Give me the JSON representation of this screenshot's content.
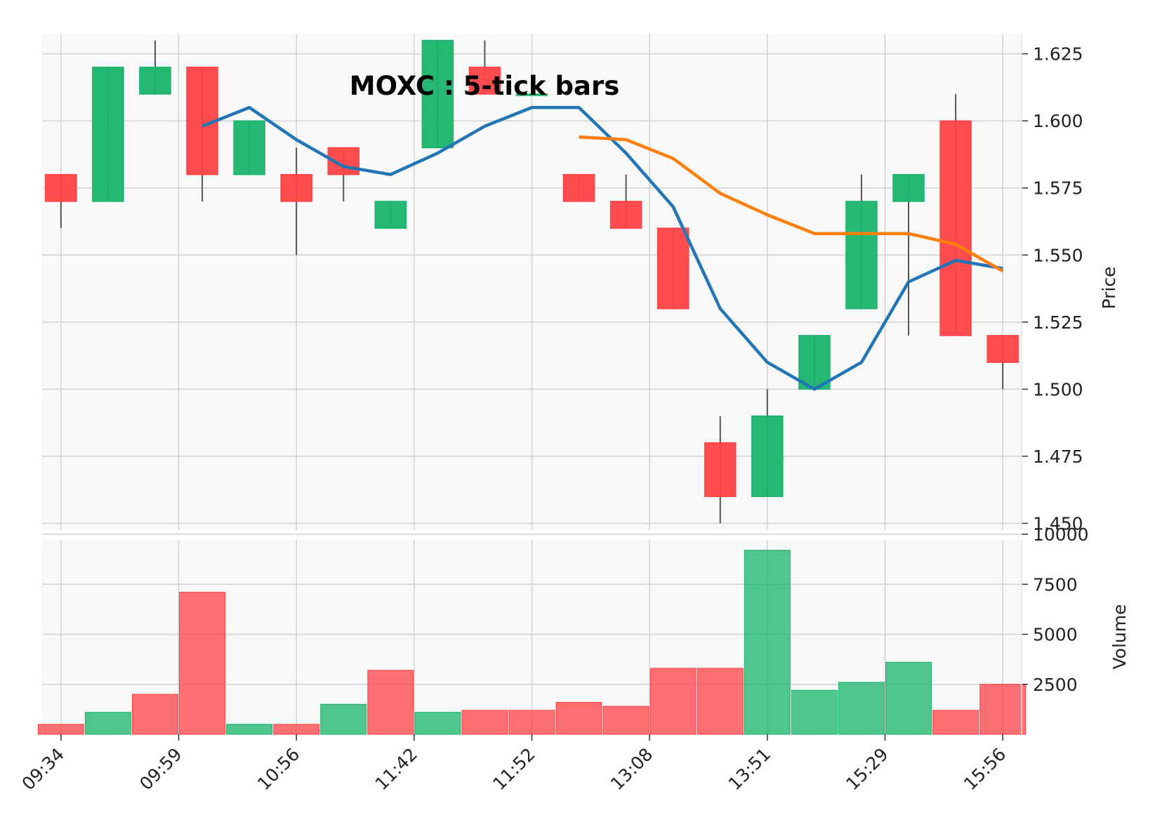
{
  "chart_data": {
    "type": "candlestick",
    "title": "MOXC : 5-tick bars",
    "price_axis_label": "Price",
    "volume_axis_label": "Volume",
    "x_tick_labels": [
      "09:34",
      "09:59",
      "10:56",
      "11:42",
      "11:52",
      "13:08",
      "13:51",
      "15:29",
      "15:56"
    ],
    "x_tick_indices": [
      0,
      5,
      10,
      15,
      20,
      25,
      30,
      35,
      40
    ],
    "price_ticks": [
      "1.450",
      "1.475",
      "1.500",
      "1.525",
      "1.550",
      "1.575",
      "1.600",
      "1.625"
    ],
    "price_tick_values": [
      1.45,
      1.475,
      1.5,
      1.525,
      1.55,
      1.575,
      1.6,
      1.625
    ],
    "volume_ticks": [
      "2500",
      "5000",
      "7500",
      "10000"
    ],
    "volume_tick_values": [
      2500,
      5000,
      7500,
      10000
    ],
    "price_ylim": [
      1.4475,
      1.6325
    ],
    "volume_ylim": [
      0,
      10000
    ],
    "x_range": [
      -0.8,
      40.8
    ],
    "colors": {
      "up": "#18b46b",
      "down": "#ff4245",
      "wick": "#555555",
      "background": "#f8f8f8",
      "grid": "#d2d2d2",
      "ma_short": "#2276b6",
      "ma_long": "#ff7f0e"
    },
    "candles": [
      {
        "i": 0,
        "open": 1.58,
        "high": 1.58,
        "low": 1.56,
        "close": 1.57
      },
      {
        "i": 2,
        "open": 1.57,
        "high": 1.62,
        "low": 1.57,
        "close": 1.62
      },
      {
        "i": 4,
        "open": 1.61,
        "high": 1.63,
        "low": 1.61,
        "close": 1.62
      },
      {
        "i": 6,
        "open": 1.62,
        "high": 1.62,
        "low": 1.57,
        "close": 1.58
      },
      {
        "i": 8,
        "open": 1.58,
        "high": 1.6,
        "low": 1.58,
        "close": 1.6
      },
      {
        "i": 10,
        "open": 1.58,
        "high": 1.59,
        "low": 1.55,
        "close": 1.57
      },
      {
        "i": 12,
        "open": 1.59,
        "high": 1.59,
        "low": 1.57,
        "close": 1.58
      },
      {
        "i": 14,
        "open": 1.56,
        "high": 1.57,
        "low": 1.56,
        "close": 1.57
      },
      {
        "i": 16,
        "open": 1.59,
        "high": 1.63,
        "low": 1.59,
        "close": 1.63
      },
      {
        "i": 18,
        "open": 1.62,
        "high": 1.63,
        "low": 1.61,
        "close": 1.61
      },
      {
        "i": 20,
        "open": 1.61,
        "high": 1.61,
        "low": 1.61,
        "close": 1.61
      },
      {
        "i": 22,
        "open": 1.58,
        "high": 1.58,
        "low": 1.57,
        "close": 1.57
      },
      {
        "i": 24,
        "open": 1.57,
        "high": 1.58,
        "low": 1.56,
        "close": 1.56
      },
      {
        "i": 26,
        "open": 1.56,
        "high": 1.56,
        "low": 1.53,
        "close": 1.53
      },
      {
        "i": 28,
        "open": 1.48,
        "high": 1.49,
        "low": 1.45,
        "close": 1.46
      },
      {
        "i": 30,
        "open": 1.46,
        "high": 1.5,
        "low": 1.46,
        "close": 1.49
      },
      {
        "i": 32,
        "open": 1.5,
        "high": 1.52,
        "low": 1.5,
        "close": 1.52
      },
      {
        "i": 34,
        "open": 1.53,
        "high": 1.58,
        "low": 1.53,
        "close": 1.57
      },
      {
        "i": 36,
        "open": 1.57,
        "high": 1.58,
        "low": 1.52,
        "close": 1.58
      },
      {
        "i": 38,
        "open": 1.6,
        "high": 1.61,
        "low": 1.52,
        "close": 1.52
      },
      {
        "i": 40,
        "open": 1.52,
        "high": 1.52,
        "low": 1.5,
        "close": 1.51
      }
    ],
    "volume_bars": [
      {
        "i": 0,
        "volume": 500,
        "direction": "down"
      },
      {
        "i": 2,
        "volume": 1100,
        "direction": "up"
      },
      {
        "i": 4,
        "volume": 2000,
        "direction": "down"
      },
      {
        "i": 6,
        "volume": 7100,
        "direction": "down"
      },
      {
        "i": 8,
        "volume": 500,
        "direction": "up"
      },
      {
        "i": 10,
        "volume": 500,
        "direction": "down"
      },
      {
        "i": 12,
        "volume": 1500,
        "direction": "up"
      },
      {
        "i": 14,
        "volume": 3200,
        "direction": "down"
      },
      {
        "i": 16,
        "volume": 1100,
        "direction": "up"
      },
      {
        "i": 18,
        "volume": 1200,
        "direction": "down"
      },
      {
        "i": 20,
        "volume": 1200,
        "direction": "down"
      },
      {
        "i": 22,
        "volume": 1600,
        "direction": "down"
      },
      {
        "i": 24,
        "volume": 1400,
        "direction": "down"
      },
      {
        "i": 26,
        "volume": 3300,
        "direction": "down"
      },
      {
        "i": 28,
        "volume": 3300,
        "direction": "down"
      },
      {
        "i": 30,
        "volume": 9200,
        "direction": "up"
      },
      {
        "i": 32,
        "volume": 2200,
        "direction": "up"
      },
      {
        "i": 34,
        "volume": 2600,
        "direction": "up"
      },
      {
        "i": 36,
        "volume": 3600,
        "direction": "up"
      },
      {
        "i": 38,
        "volume": 1200,
        "direction": "down"
      },
      {
        "i": 40,
        "volume": 2500,
        "direction": "down"
      }
    ],
    "ma_short": [
      {
        "i": 6,
        "value": 1.598
      },
      {
        "i": 8,
        "value": 1.605
      },
      {
        "i": 10,
        "value": 1.593
      },
      {
        "i": 12,
        "value": 1.583
      },
      {
        "i": 14,
        "value": 1.58
      },
      {
        "i": 16,
        "value": 1.588
      },
      {
        "i": 18,
        "value": 1.598
      },
      {
        "i": 20,
        "value": 1.605
      },
      {
        "i": 22,
        "value": 1.605
      },
      {
        "i": 24,
        "value": 1.588
      },
      {
        "i": 26,
        "value": 1.568
      },
      {
        "i": 28,
        "value": 1.53
      },
      {
        "i": 30,
        "value": 1.51
      },
      {
        "i": 32,
        "value": 1.5
      },
      {
        "i": 34,
        "value": 1.51
      },
      {
        "i": 36,
        "value": 1.54
      },
      {
        "i": 38,
        "value": 1.548
      },
      {
        "i": 40,
        "value": 1.545
      }
    ],
    "ma_long": [
      {
        "i": 22,
        "value": 1.594
      },
      {
        "i": 24,
        "value": 1.593
      },
      {
        "i": 26,
        "value": 1.586
      },
      {
        "i": 28,
        "value": 1.573
      },
      {
        "i": 30,
        "value": 1.565
      },
      {
        "i": 32,
        "value": 1.558
      },
      {
        "i": 34,
        "value": 1.558
      },
      {
        "i": 36,
        "value": 1.558
      },
      {
        "i": 38,
        "value": 1.554
      },
      {
        "i": 40,
        "value": 1.544
      }
    ]
  }
}
